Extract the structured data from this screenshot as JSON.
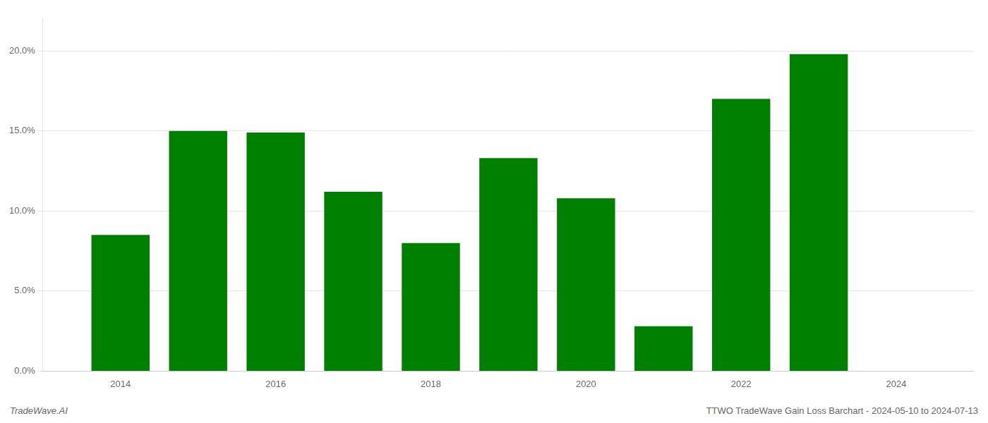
{
  "chart_data": {
    "type": "bar",
    "x": [
      2014,
      2015,
      2016,
      2017,
      2018,
      2019,
      2020,
      2021,
      2022,
      2023
    ],
    "values": [
      0.085,
      0.15,
      0.149,
      0.112,
      0.08,
      0.133,
      0.108,
      0.028,
      0.17,
      0.198
    ],
    "color": "#008000",
    "xlim": [
      2013,
      2025
    ],
    "xticks": [
      2014,
      2016,
      2018,
      2020,
      2022,
      2024
    ],
    "ylim": [
      0.0,
      0.22
    ],
    "yticks": [
      {
        "value": 0.0,
        "label": "0.0%"
      },
      {
        "value": 0.05,
        "label": "5.0%"
      },
      {
        "value": 0.1,
        "label": "10.0%"
      },
      {
        "value": 0.15,
        "label": "15.0%"
      },
      {
        "value": 0.2,
        "label": "20.0%"
      }
    ],
    "grid": "y",
    "annotations": [
      "TradeWave.AI",
      "TTWO TradeWave Gain Loss Barchart - 2024-05-10 to 2024-07-13"
    ]
  }
}
